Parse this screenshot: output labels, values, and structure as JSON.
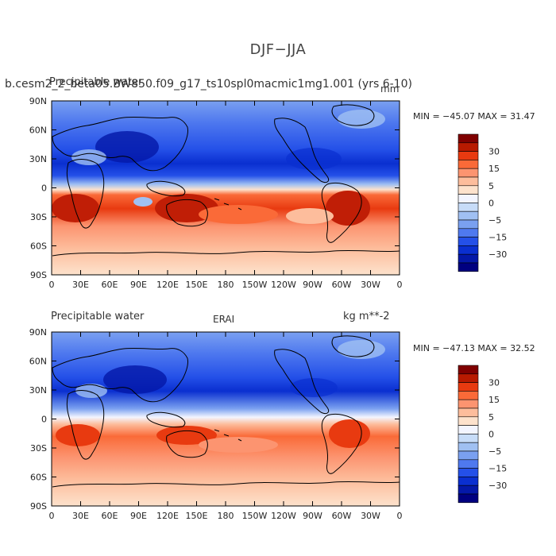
{
  "title": "DJF−JJA",
  "panels": [
    {
      "left_title": "Precipitable water",
      "case_title": "b.cesm2_2_beta05.BW850.f09_g17_ts10spl0macmic1mg1.001 (yrs 6-10)",
      "units": "mm",
      "stats_text": "MIN = −45.07 MAX =   31.47"
    },
    {
      "left_title": "Precipitable water",
      "case_title": "ERAI",
      "units": "kg m**-2",
      "stats_text": "MIN = −47.13 MAX =   32.52"
    }
  ],
  "axes": {
    "lat_ticks": [
      "90N",
      "60N",
      "30N",
      "0",
      "30S",
      "60S",
      "90S"
    ],
    "lon_ticks": [
      "0",
      "30E",
      "60E",
      "90E",
      "120E",
      "150E",
      "180",
      "150W",
      "120W",
      "90W",
      "60W",
      "30W",
      "0"
    ]
  },
  "colorbar": {
    "labels": [
      "30",
      "15",
      "5",
      "0",
      "−5",
      "−15",
      "−30"
    ],
    "colors": [
      "#800000",
      "#b81a00",
      "#e83a10",
      "#fa6a38",
      "#fc9470",
      "#fdbd9c",
      "#fde2cc",
      "#f3f5ff",
      "#c7dcf8",
      "#a0c0f2",
      "#7aa0f0",
      "#4f79ef",
      "#2450e8",
      "#0a2fd0",
      "#0418a8",
      "#000080"
    ]
  }
}
